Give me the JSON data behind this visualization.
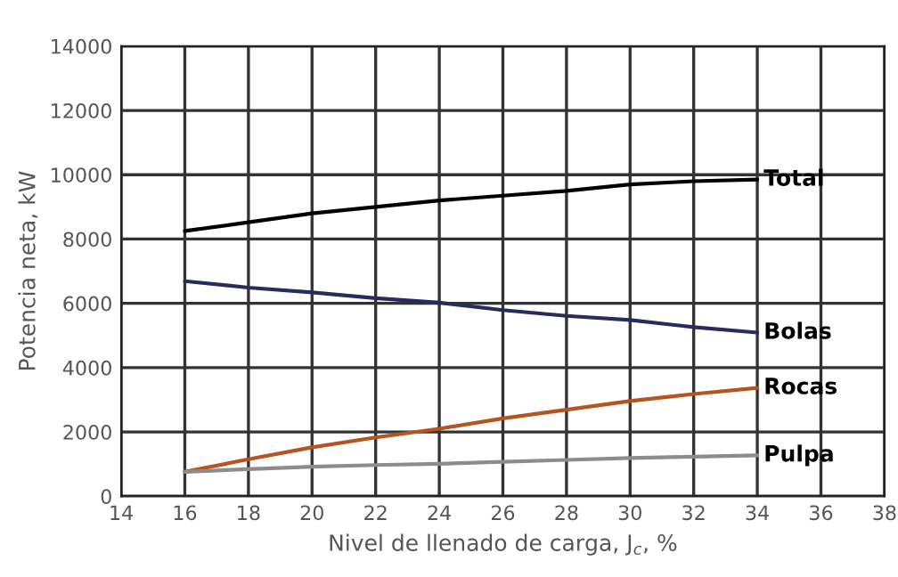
{
  "chart_data": {
    "type": "line",
    "xlabel": "Nivel de llenado de carga, J$_{c}$, %",
    "ylabel": "Potencia neta, kW",
    "x": [
      16,
      18,
      20,
      22,
      24,
      26,
      28,
      30,
      32,
      34
    ],
    "series": [
      {
        "name": "Total",
        "color": "#000000",
        "values": [
          8250,
          8520,
          8800,
          9000,
          9200,
          9350,
          9500,
          9700,
          9800,
          9850
        ]
      },
      {
        "name": "Bolas",
        "color": "#2b2a5e",
        "values": [
          6690,
          6490,
          6340,
          6160,
          6020,
          5790,
          5610,
          5480,
          5260,
          5090
        ]
      },
      {
        "name": "Rocas",
        "color": "#b5541e",
        "values": [
          760,
          1150,
          1520,
          1830,
          2100,
          2420,
          2690,
          2960,
          3180,
          3370
        ]
      },
      {
        "name": "Pulpa",
        "color": "#8c8c8c",
        "values": [
          760,
          840,
          920,
          970,
          1010,
          1070,
          1130,
          1190,
          1230,
          1270
        ]
      }
    ],
    "xlim": [
      14,
      38
    ],
    "xticks": [
      14,
      16,
      18,
      20,
      22,
      24,
      26,
      28,
      30,
      32,
      34,
      36,
      38
    ],
    "ylim": [
      0,
      14000
    ],
    "yticks": [
      0,
      2000,
      4000,
      6000,
      8000,
      10000,
      12000,
      14000
    ],
    "grid": true,
    "legend": false,
    "marker": "none",
    "line_style": "solid"
  }
}
